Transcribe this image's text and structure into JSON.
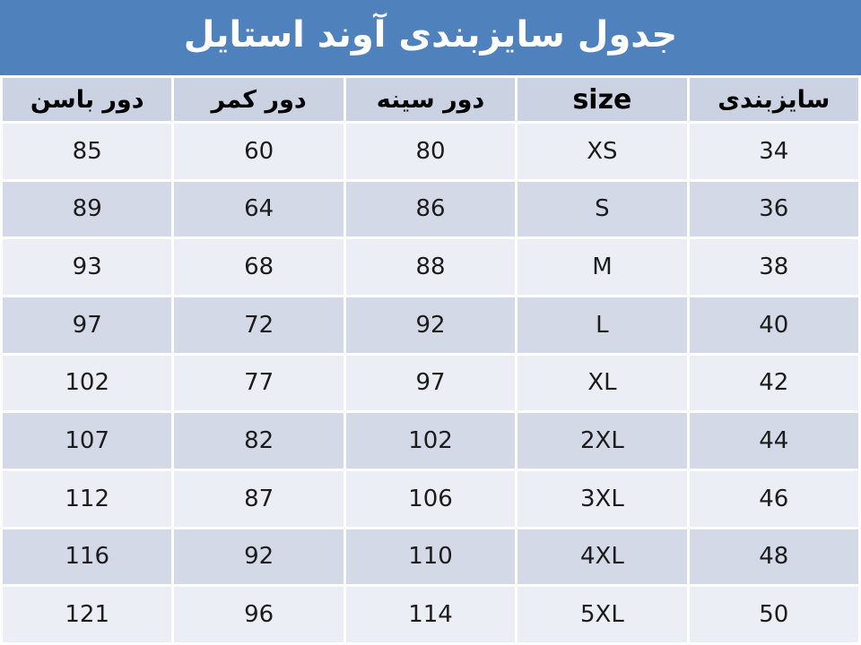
{
  "title": "جدول سایزبندی آوند استایل",
  "colors": {
    "title_bg": "#4f81bd",
    "title_text": "#ffffff",
    "header_bg": "#cbd2e2",
    "row_light": "#eceef5",
    "row_dark": "#d4d9e7",
    "grid": "#ffffff",
    "cell_text": "#1c1c1c"
  },
  "chart_data": {
    "type": "table",
    "title": "جدول سایزبندی آوند استایل",
    "direction": "rtl",
    "columns": [
      "سایزبندی",
      "size",
      "دور سینه",
      "دور کمر",
      "دور باسن"
    ],
    "rows": [
      [
        "34",
        "XS",
        "80",
        "60",
        "85"
      ],
      [
        "36",
        "S",
        "86",
        "64",
        "89"
      ],
      [
        "38",
        "M",
        "88",
        "68",
        "93"
      ],
      [
        "40",
        "L",
        "92",
        "72",
        "97"
      ],
      [
        "42",
        "XL",
        "97",
        "77",
        "102"
      ],
      [
        "44",
        "2XL",
        "102",
        "82",
        "107"
      ],
      [
        "46",
        "3XL",
        "106",
        "87",
        "112"
      ],
      [
        "48",
        "4XL",
        "110",
        "92",
        "116"
      ],
      [
        "50",
        "5XL",
        "114",
        "96",
        "121"
      ]
    ]
  }
}
